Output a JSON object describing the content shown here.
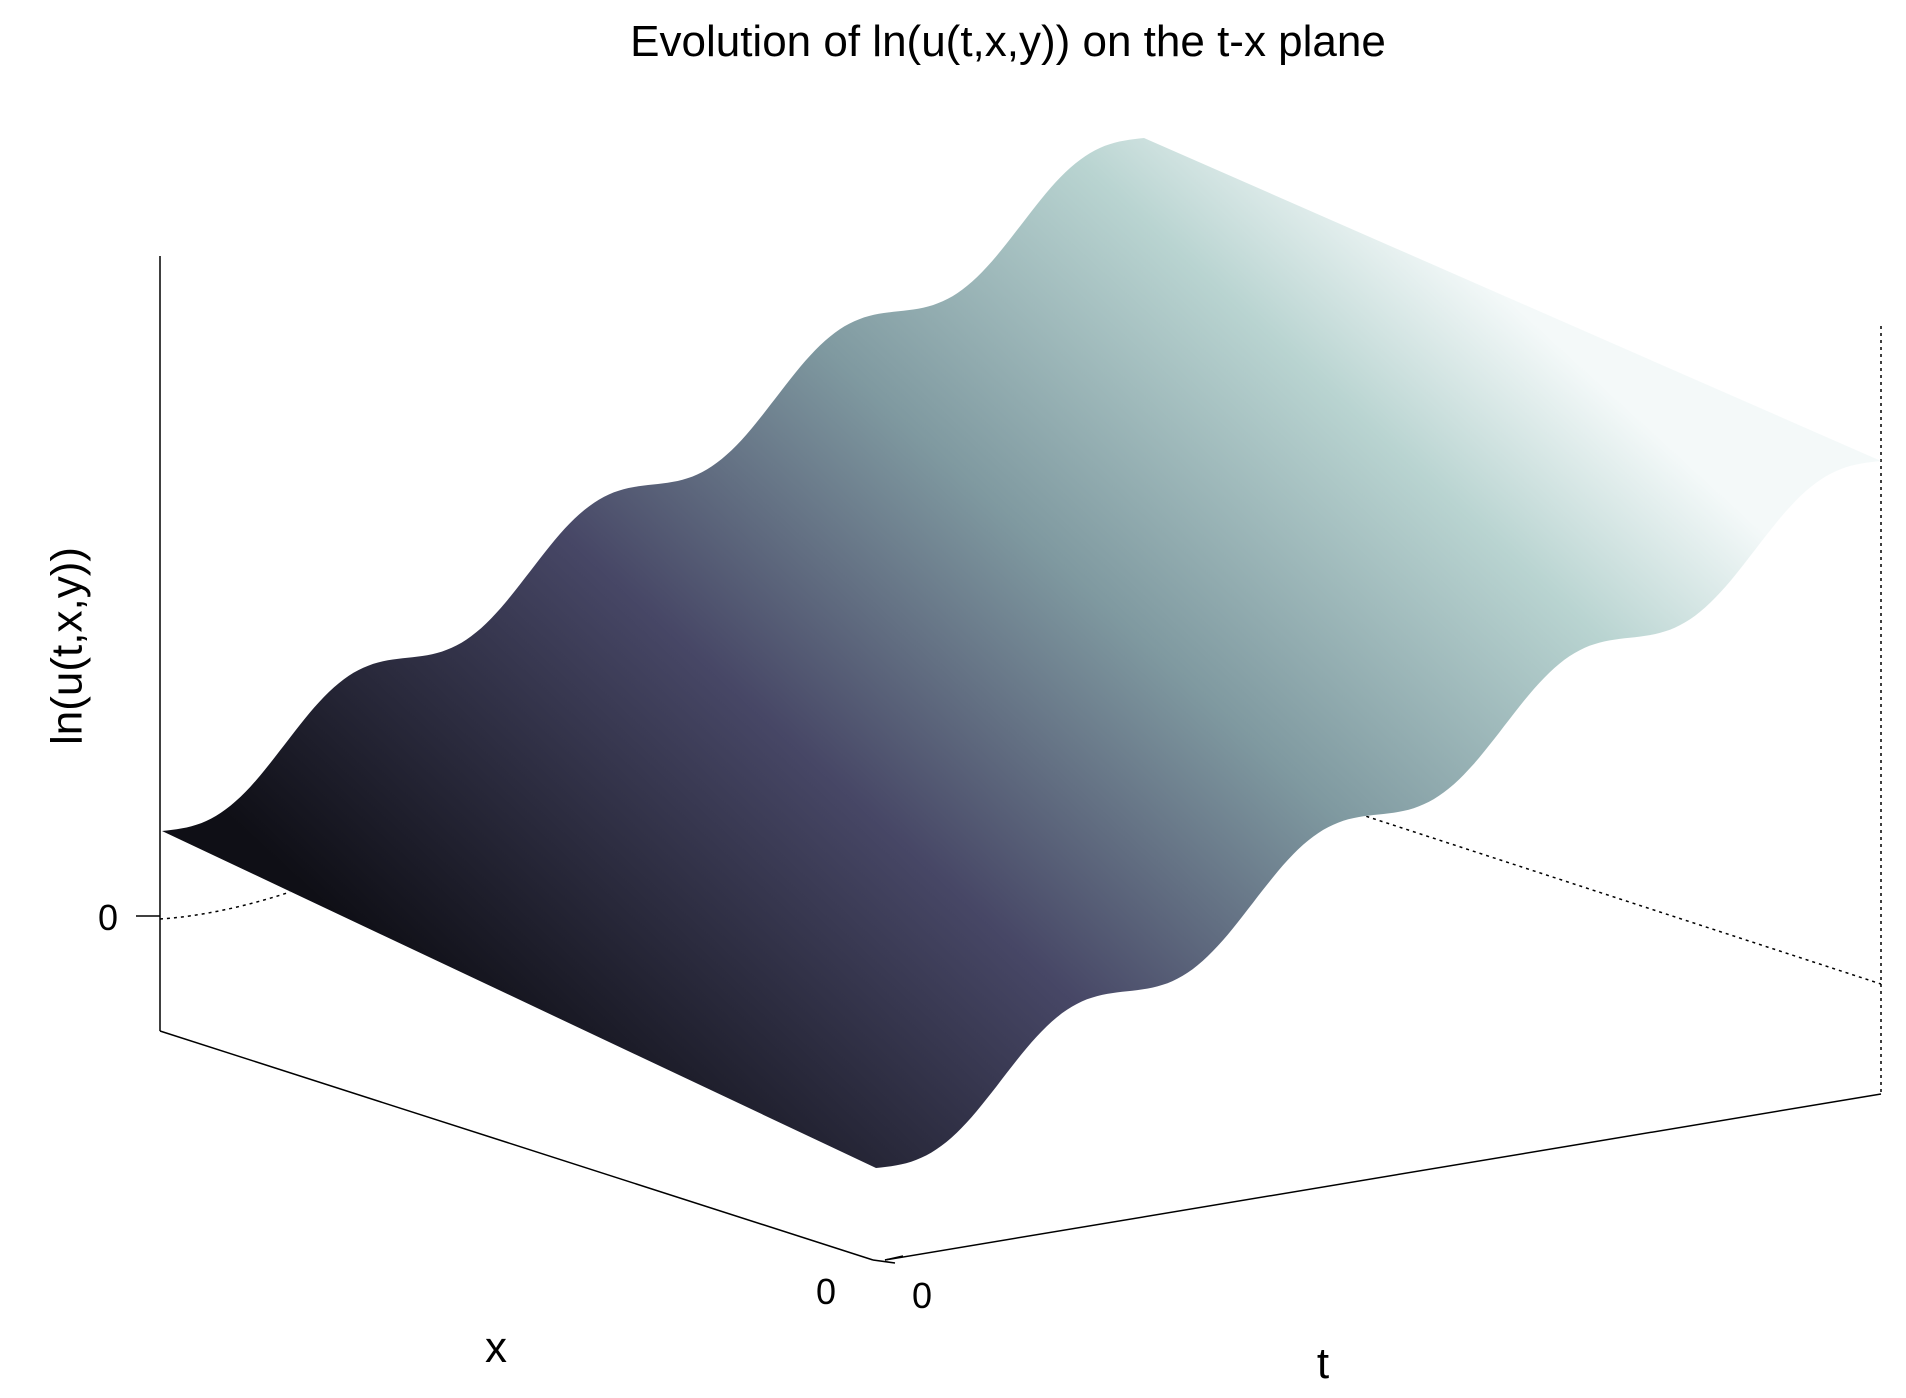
{
  "chart_data": {
    "type": "surface",
    "title": "Evolution of ln(u(t,x,y)) on the t-x plane",
    "xlabel": "t",
    "ylabel": "x",
    "zlabel": "ln(u(t,x,y))",
    "xticks": [
      0
    ],
    "yticks": [
      0
    ],
    "zticks": [
      0
    ]
  }
}
